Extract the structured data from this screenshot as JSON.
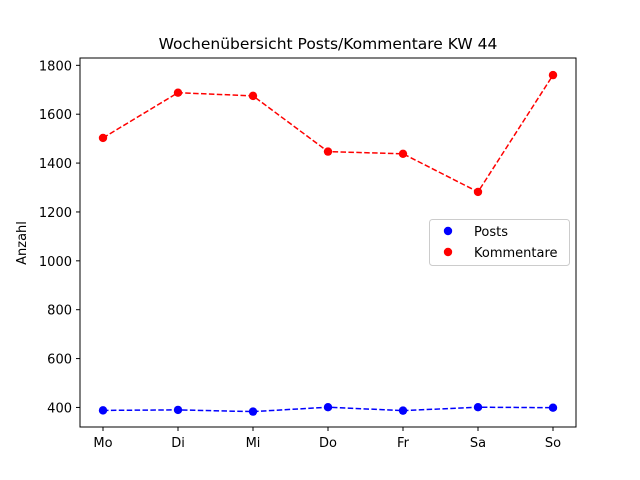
{
  "chart_data": {
    "type": "line",
    "title": "Wochenübersicht Posts/Kommentare KW 44",
    "xlabel": "",
    "ylabel": "Anzahl",
    "categories": [
      "Mo",
      "Di",
      "Mi",
      "Do",
      "Fr",
      "Sa",
      "So"
    ],
    "ylim": [
      320,
      1830
    ],
    "yticks": [
      400,
      600,
      800,
      1000,
      1200,
      1400,
      1600,
      1800
    ],
    "grid": false,
    "legend_position": "center-right",
    "series": [
      {
        "name": "Posts",
        "color": "#0000ff",
        "line_style": "dashed",
        "marker": "circle",
        "values": [
          388,
          390,
          383,
          401,
          387,
          401,
          399
        ]
      },
      {
        "name": "Kommentare",
        "color": "#ff0000",
        "line_style": "dashed",
        "marker": "circle",
        "values": [
          1503,
          1688,
          1675,
          1447,
          1438,
          1282,
          1760
        ]
      }
    ]
  }
}
